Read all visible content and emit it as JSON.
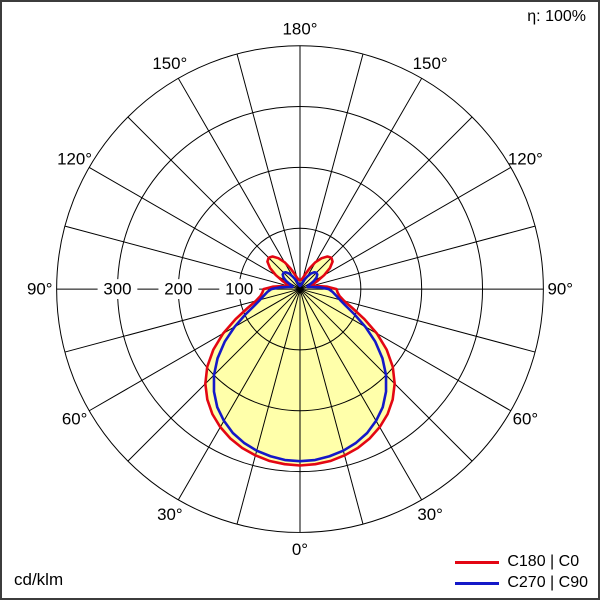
{
  "meta": {
    "efficiency_label": "η: 100%",
    "unit_label": "cd/klm"
  },
  "chart_data": {
    "type": "polar-line",
    "description": "Luminous intensity distribution curve (photometric polar diagram), 0° at nadir (bottom), values in cd/klm",
    "unit_label": "cd/klm",
    "efficiency_label": "η: 100%",
    "fill_color": "#ffffaa",
    "grid": {
      "radial_max": 400,
      "circle_step": 100,
      "spoke_step_deg": 15,
      "angle_labels_deg": [
        0,
        30,
        60,
        90,
        120,
        150,
        180
      ],
      "radial_tick_labels": [
        300,
        200,
        100
      ],
      "grid_color": "#000000"
    },
    "symmetry": "mirrored left/right half-planes",
    "series": [
      {
        "name": "C180 | C0",
        "color": "#e30613",
        "filled": true,
        "angles_deg": [
          0,
          5,
          10,
          15,
          20,
          25,
          30,
          35,
          40,
          45,
          50,
          55,
          60,
          65,
          70,
          75,
          80,
          85,
          90,
          95,
          100,
          105,
          110,
          115,
          120,
          125,
          130,
          135,
          140,
          145,
          150,
          155,
          160,
          165,
          170,
          175,
          180
        ],
        "values": [
          290,
          289,
          287,
          283,
          278,
          271,
          262,
          251,
          237,
          220,
          199,
          174,
          146,
          117,
          92,
          75,
          66,
          62,
          60,
          45,
          28,
          20,
          22,
          32,
          46,
          60,
          70,
          73,
          70,
          62,
          51,
          38,
          27,
          20,
          16,
          15,
          15
        ]
      },
      {
        "name": "C270 | C90",
        "color": "#1418c8",
        "filled": false,
        "angles_deg": [
          0,
          5,
          10,
          15,
          20,
          25,
          30,
          35,
          40,
          45,
          50,
          55,
          60,
          65,
          70,
          75,
          80,
          85,
          90,
          95,
          100,
          105,
          110,
          115,
          120,
          125,
          130,
          135,
          140,
          145,
          150,
          155,
          160,
          165,
          170,
          175,
          180
        ],
        "values": [
          283,
          282,
          279,
          275,
          269,
          261,
          250,
          237,
          220,
          200,
          177,
          151,
          124,
          99,
          80,
          68,
          60,
          54,
          47,
          33,
          20,
          13,
          13,
          18,
          26,
          33,
          37,
          38,
          36,
          31,
          24,
          17,
          11,
          8,
          6,
          5,
          5
        ]
      }
    ]
  }
}
